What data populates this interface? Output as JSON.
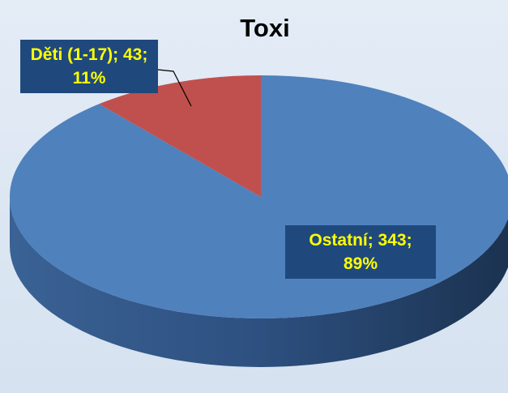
{
  "chart_data": {
    "type": "pie",
    "title": "Toxi",
    "categories": [
      "Děti (1-17)",
      "Ostatní"
    ],
    "values": [
      43,
      343
    ],
    "value_labels": [
      "Děti (1-17); 43; 11%",
      "Ostatní; 343; 89%"
    ],
    "colors": [
      "#c0504d",
      "#4f81bd"
    ]
  }
}
